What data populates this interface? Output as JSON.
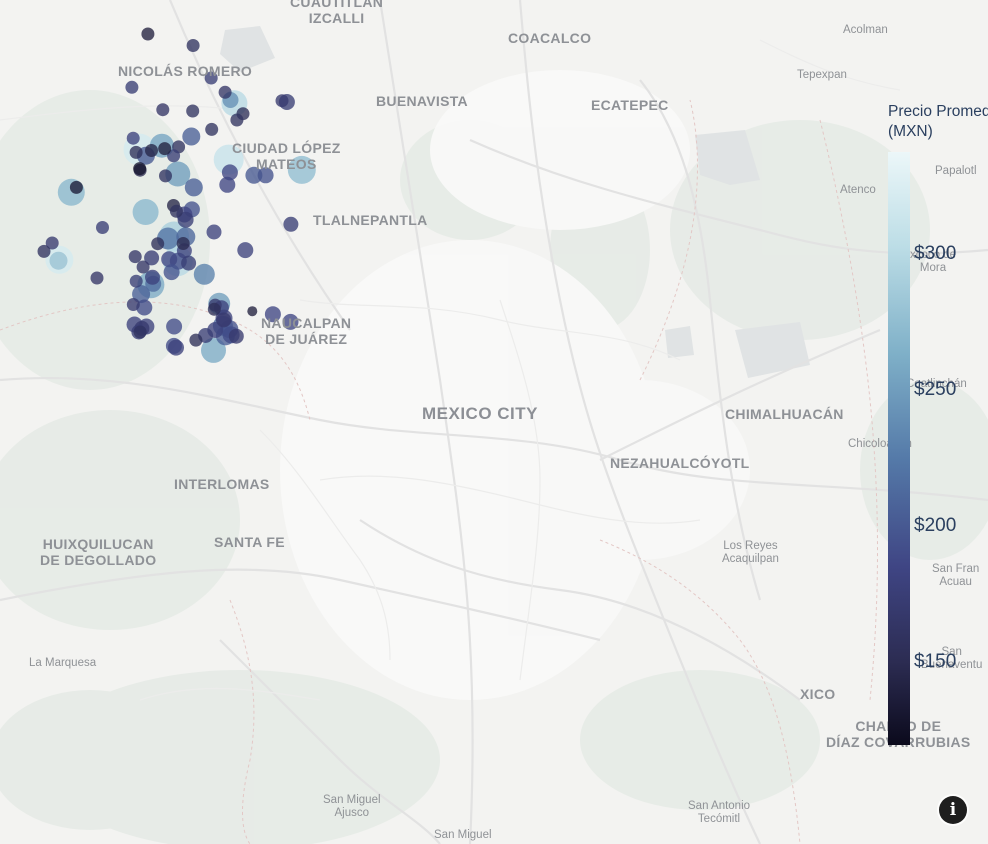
{
  "map": {
    "places": [
      {
        "id": "cuautitlan-izcalli",
        "label": "CUAUTITLÁN\nIZCALLI",
        "cls": "major"
      },
      {
        "id": "coacalco",
        "label": "COACALCO",
        "cls": "major"
      },
      {
        "id": "acolman",
        "label": "Acolman",
        "cls": "minor"
      },
      {
        "id": "nicolas-romero",
        "label": "NICOLÁS ROMERO",
        "cls": "major"
      },
      {
        "id": "tepexpan",
        "label": "Tepexpan",
        "cls": "minor"
      },
      {
        "id": "buenavista",
        "label": "BUENAVISTA",
        "cls": "major"
      },
      {
        "id": "ecatepec",
        "label": "ECATEPEC",
        "cls": "major"
      },
      {
        "id": "ciudad-lopez-mateos",
        "label": "CIUDAD LÓPEZ\nMATEOS",
        "cls": "major"
      },
      {
        "id": "papalotla",
        "label": "Papalotl",
        "cls": "minor"
      },
      {
        "id": "atenco",
        "label": "Atenco",
        "cls": "minor"
      },
      {
        "id": "tlalnepantla",
        "label": "TLALNEPANTLA",
        "cls": "major"
      },
      {
        "id": "texcoco-de-mora",
        "label": "xcoco de\nMora",
        "cls": "minor"
      },
      {
        "id": "naucalpan",
        "label": "NAUCALPAN\nDE JUÁREZ",
        "cls": "major"
      },
      {
        "id": "coatlinchan",
        "label": "Coatlinchán",
        "cls": "minor"
      },
      {
        "id": "mexico-city",
        "label": "MEXICO CITY",
        "cls": "big"
      },
      {
        "id": "chimalhuacan",
        "label": "CHIMALHUACÁN",
        "cls": "major"
      },
      {
        "id": "chicoloapan",
        "label": "Chicoloapan",
        "cls": "minor"
      },
      {
        "id": "nezahualcoyotl",
        "label": "NEZAHUALCÓYOTL",
        "cls": "major"
      },
      {
        "id": "interlomas",
        "label": "INTERLOMAS",
        "cls": "major"
      },
      {
        "id": "huixquilucan",
        "label": "HUIXQUILUCAN\nDE DEGOLLADO",
        "cls": "major"
      },
      {
        "id": "santa-fe",
        "label": "SANTA FE",
        "cls": "major"
      },
      {
        "id": "los-reyes",
        "label": "Los Reyes\nAcaquilpan",
        "cls": "minor"
      },
      {
        "id": "san-francisco",
        "label": "San Fran\nAcuau",
        "cls": "minor"
      },
      {
        "id": "san-buenaventura",
        "label": "San\nBuenaventu",
        "cls": "minor"
      },
      {
        "id": "la-marquesa",
        "label": "La Marquesa",
        "cls": "minor"
      },
      {
        "id": "xico",
        "label": "XICO",
        "cls": "major"
      },
      {
        "id": "chalco",
        "label": "CHALCO DE\nDÍAZ COVARRUBIAS",
        "cls": "major"
      },
      {
        "id": "san-miguel-ajusco",
        "label": "San Miguel\nAjusco",
        "cls": "minor"
      },
      {
        "id": "san-antonio-tecomitl",
        "label": "San Antonio\nTecómitl",
        "cls": "minor"
      },
      {
        "id": "san-miguel",
        "label": "San Miguel",
        "cls": "minor"
      }
    ],
    "points": [
      {
        "lat": 19.5325,
        "lon": -99.2131,
        "price": 140,
        "size": 13
      },
      {
        "lat": 19.5236,
        "lon": -99.1758,
        "price": 160,
        "size": 13
      },
      {
        "lat": 19.4985,
        "lon": -99.1609,
        "price": 175,
        "size": 13
      },
      {
        "lat": 19.4913,
        "lon": -99.2263,
        "price": 175,
        "size": 13
      },
      {
        "lat": 19.4875,
        "lon": -99.1494,
        "price": 165,
        "size": 13
      },
      {
        "lat": 19.479,
        "lon": -99.1418,
        "price": 300,
        "size": 26
      },
      {
        "lat": 19.4815,
        "lon": -99.145,
        "price": 240,
        "size": 16
      },
      {
        "lat": 19.48,
        "lon": -99.0985,
        "price": 175,
        "size": 16
      },
      {
        "lat": 19.481,
        "lon": -99.1025,
        "price": 170,
        "size": 13
      },
      {
        "lat": 19.4709,
        "lon": -99.1347,
        "price": 155,
        "size": 13
      },
      {
        "lat": 19.474,
        "lon": -99.2008,
        "price": 165,
        "size": 13
      },
      {
        "lat": 19.473,
        "lon": -99.1761,
        "price": 160,
        "size": 13
      },
      {
        "lat": 19.4661,
        "lon": -99.1397,
        "price": 160,
        "size": 13
      },
      {
        "lat": 19.4588,
        "lon": -99.1605,
        "price": 160,
        "size": 13
      },
      {
        "lat": 19.4533,
        "lon": -99.1773,
        "price": 205,
        "size": 18
      },
      {
        "lat": 19.452,
        "lon": -99.2252,
        "price": 180,
        "size": 13
      },
      {
        "lat": 19.4432,
        "lon": -99.22,
        "price": 320,
        "size": 32
      },
      {
        "lat": 19.4462,
        "lon": -99.2015,
        "price": 255,
        "size": 24
      },
      {
        "lat": 19.4453,
        "lon": -99.1878,
        "price": 160,
        "size": 13
      },
      {
        "lat": 19.4425,
        "lon": -99.2101,
        "price": 145,
        "size": 13
      },
      {
        "lat": 19.441,
        "lon": -99.2228,
        "price": 155,
        "size": 13
      },
      {
        "lat": 19.4385,
        "lon": -99.2147,
        "price": 200,
        "size": 18
      },
      {
        "lat": 19.4384,
        "lon": -99.1919,
        "price": 175,
        "size": 13
      },
      {
        "lat": 19.444,
        "lon": -99.1992,
        "price": 140,
        "size": 13
      },
      {
        "lat": 19.4355,
        "lon": -99.1465,
        "price": 310,
        "size": 30
      },
      {
        "lat": 19.4273,
        "lon": -99.2195,
        "price": 150,
        "size": 13
      },
      {
        "lat": 19.4285,
        "lon": -99.2198,
        "price": 130,
        "size": 13
      },
      {
        "lat": 19.4243,
        "lon": -99.1884,
        "price": 250,
        "size": 25
      },
      {
        "lat": 19.4229,
        "lon": -99.1986,
        "price": 160,
        "size": 13
      },
      {
        "lat": 19.4256,
        "lon": -99.1455,
        "price": 185,
        "size": 16
      },
      {
        "lat": 19.4233,
        "lon": -99.1257,
        "price": 200,
        "size": 17
      },
      {
        "lat": 19.4233,
        "lon": -99.116,
        "price": 195,
        "size": 16
      },
      {
        "lat": 19.4275,
        "lon": -99.0862,
        "price": 275,
        "size": 28
      },
      {
        "lat": 19.414,
        "lon": -99.1752,
        "price": 205,
        "size": 18
      },
      {
        "lat": 19.416,
        "lon": -99.1476,
        "price": 185,
        "size": 16
      },
      {
        "lat": 19.4102,
        "lon": -99.2762,
        "price": 270,
        "size": 27
      },
      {
        "lat": 19.414,
        "lon": -99.272,
        "price": 135,
        "size": 13
      },
      {
        "lat": 19.4,
        "lon": -99.192,
        "price": 145,
        "size": 13
      },
      {
        "lat": 19.397,
        "lon": -99.1768,
        "price": 195,
        "size": 16
      },
      {
        "lat": 19.3955,
        "lon": -99.1896,
        "price": 160,
        "size": 13
      },
      {
        "lat": 19.395,
        "lon": -99.215,
        "price": 270,
        "size": 26
      },
      {
        "lat": 19.393,
        "lon": -99.183,
        "price": 185,
        "size": 16
      },
      {
        "lat": 19.389,
        "lon": -99.182,
        "price": 175,
        "size": 16
      },
      {
        "lat": 19.3855,
        "lon": -99.0952,
        "price": 175,
        "size": 15
      },
      {
        "lat": 19.383,
        "lon": -99.2505,
        "price": 175,
        "size": 13
      },
      {
        "lat": 19.3795,
        "lon": -99.1586,
        "price": 180,
        "size": 15
      },
      {
        "lat": 19.3758,
        "lon": -99.1818,
        "price": 210,
        "size": 19
      },
      {
        "lat": 19.376,
        "lon": -99.1915,
        "price": 290,
        "size": 30
      },
      {
        "lat": 19.3745,
        "lon": -99.1965,
        "price": 220,
        "size": 22
      },
      {
        "lat": 19.3705,
        "lon": -99.205,
        "price": 155,
        "size": 13
      },
      {
        "lat": 19.3706,
        "lon": -99.184,
        "price": 150,
        "size": 13
      },
      {
        "lat": 19.371,
        "lon": -99.292,
        "price": 170,
        "size": 13
      },
      {
        "lat": 19.3655,
        "lon": -99.1328,
        "price": 180,
        "size": 16
      },
      {
        "lat": 19.365,
        "lon": -99.183,
        "price": 180,
        "size": 15
      },
      {
        "lat": 19.3645,
        "lon": -99.2987,
        "price": 160,
        "size": 13
      },
      {
        "lat": 19.358,
        "lon": -99.286,
        "price": 320,
        "size": 28
      },
      {
        "lat": 19.3573,
        "lon": -99.2868,
        "price": 280,
        "size": 18
      },
      {
        "lat": 19.3605,
        "lon": -99.2235,
        "price": 165,
        "size": 13
      },
      {
        "lat": 19.3585,
        "lon": -99.1955,
        "price": 185,
        "size": 16
      },
      {
        "lat": 19.357,
        "lon": -99.1885,
        "price": 300,
        "size": 30
      },
      {
        "lat": 19.357,
        "lon": -99.188,
        "price": 190,
        "size": 17
      },
      {
        "lat": 19.3595,
        "lon": -99.21,
        "price": 175,
        "size": 15
      },
      {
        "lat": 19.3555,
        "lon": -99.1795,
        "price": 175,
        "size": 15
      },
      {
        "lat": 19.3525,
        "lon": -99.217,
        "price": 165,
        "size": 13
      },
      {
        "lat": 19.3485,
        "lon": -99.1935,
        "price": 195,
        "size": 16
      },
      {
        "lat": 19.3468,
        "lon": -99.1666,
        "price": 230,
        "size": 21
      },
      {
        "lat": 19.3445,
        "lon": -99.2093,
        "price": 180,
        "size": 15
      },
      {
        "lat": 19.344,
        "lon": -99.255,
        "price": 165,
        "size": 13
      },
      {
        "lat": 19.3415,
        "lon": -99.2227,
        "price": 175,
        "size": 13
      },
      {
        "lat": 19.3387,
        "lon": -99.2106,
        "price": 260,
        "size": 27
      },
      {
        "lat": 19.3395,
        "lon": -99.2087,
        "price": 215,
        "size": 16
      },
      {
        "lat": 19.3315,
        "lon": -99.2187,
        "price": 205,
        "size": 18
      },
      {
        "lat": 19.324,
        "lon": -99.1543,
        "price": 250,
        "size": 22
      },
      {
        "lat": 19.323,
        "lon": -99.1576,
        "price": 170,
        "size": 13
      },
      {
        "lat": 19.321,
        "lon": -99.1525,
        "price": 180,
        "size": 15
      },
      {
        "lat": 19.3235,
        "lon": -99.2251,
        "price": 170,
        "size": 13
      },
      {
        "lat": 19.3212,
        "lon": -99.216,
        "price": 190,
        "size": 16
      },
      {
        "lat": 19.3198,
        "lon": -99.1583,
        "price": 155,
        "size": 13
      },
      {
        "lat": 19.3183,
        "lon": -99.127,
        "price": 140,
        "size": 10
      },
      {
        "lat": 19.316,
        "lon": -99.11,
        "price": 185,
        "size": 16
      },
      {
        "lat": 19.313,
        "lon": -99.1503,
        "price": 180,
        "size": 17
      },
      {
        "lat": 19.3115,
        "lon": -99.1506,
        "price": 170,
        "size": 15
      },
      {
        "lat": 19.31,
        "lon": -99.0955,
        "price": 185,
        "size": 16
      },
      {
        "lat": 19.307,
        "lon": -99.1512,
        "price": 210,
        "size": 20
      },
      {
        "lat": 19.308,
        "lon": -99.2241,
        "price": 180,
        "size": 16
      },
      {
        "lat": 19.3065,
        "lon": -99.2143,
        "price": 180,
        "size": 16
      },
      {
        "lat": 19.3065,
        "lon": -99.1915,
        "price": 190,
        "size": 16
      },
      {
        "lat": 19.305,
        "lon": -99.218,
        "price": 170,
        "size": 15
      },
      {
        "lat": 19.3022,
        "lon": -99.2205,
        "price": 175,
        "size": 15
      },
      {
        "lat": 19.3022,
        "lon": -99.2195,
        "price": 160,
        "size": 13
      },
      {
        "lat": 19.3045,
        "lon": -99.146,
        "price": 195,
        "size": 18
      },
      {
        "lat": 19.3038,
        "lon": -99.1575,
        "price": 180,
        "size": 16
      },
      {
        "lat": 19.3,
        "lon": -99.1445,
        "price": 190,
        "size": 17
      },
      {
        "lat": 19.2992,
        "lon": -99.1492,
        "price": 205,
        "size": 19
      },
      {
        "lat": 19.2995,
        "lon": -99.1655,
        "price": 175,
        "size": 15
      },
      {
        "lat": 19.299,
        "lon": -99.1402,
        "price": 170,
        "size": 15
      },
      {
        "lat": 19.296,
        "lon": -99.1735,
        "price": 155,
        "size": 13
      },
      {
        "lat": 19.2915,
        "lon": -99.1916,
        "price": 190,
        "size": 16
      },
      {
        "lat": 19.2902,
        "lon": -99.1899,
        "price": 180,
        "size": 16
      },
      {
        "lat": 19.288,
        "lon": -99.159,
        "price": 260,
        "size": 25
      }
    ]
  },
  "colorbar": {
    "title": "Precio Promedio\n(MXN)",
    "min": 120,
    "max": 338,
    "ticks": [
      {
        "value": 150,
        "label": "$150"
      },
      {
        "value": 200,
        "label": "$200"
      },
      {
        "value": 250,
        "label": "$250"
      },
      {
        "value": 300,
        "label": "$300"
      }
    ]
  },
  "info_button": {
    "label": "i"
  }
}
